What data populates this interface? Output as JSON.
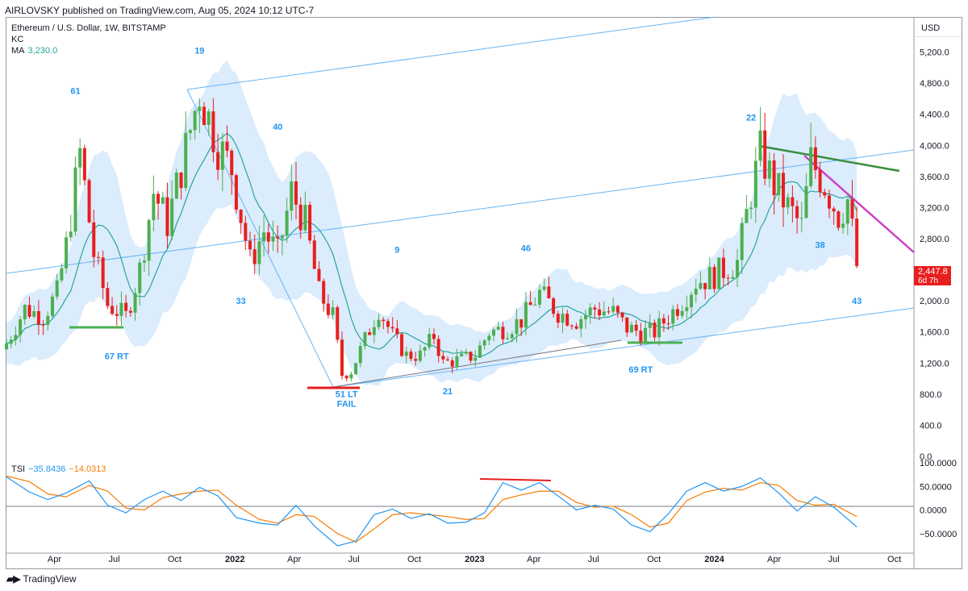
{
  "header": {
    "published": "AIRLOVSKY published on TradingView.com, Aug 05, 2024 10:12 UTC-7"
  },
  "legend": {
    "symbol": "Ethereum / U.S. Dollar, 1W, BITSTAMP",
    "kc": "KC",
    "ma_label": "MA",
    "ma_value": "3,230.0"
  },
  "price_axis": {
    "currency": "USD",
    "last_price": "2,447.8",
    "countdown": "6d 7h"
  },
  "tsi": {
    "label": "TSI",
    "value1": "−35.8436",
    "value2": "−14.0313"
  },
  "footer": {
    "brand": "TradingView",
    "logo": "tradingview-logo-icon"
  },
  "colors": {
    "up": "#4caf50",
    "down": "#e91e1e",
    "kc_fill": "#cfe6fb",
    "channel": "#64b5f6",
    "ma": "#26a69a",
    "tsi": "#2196f3",
    "tsi_signal": "#f57c00",
    "label_blue": "#2196f3"
  },
  "chart_data": {
    "type": "candlestick",
    "title": "Ethereum / U.S. Dollar, 1W, BITSTAMP",
    "y_range": [
      0,
      5600
    ],
    "y_ticks": [
      {
        "v": 0,
        "label": "0.0"
      },
      {
        "v": 400,
        "label": "400.0"
      },
      {
        "v": 800,
        "label": "800.0"
      },
      {
        "v": 1200,
        "label": "1,200.0"
      },
      {
        "v": 1600,
        "label": "1,600.0"
      },
      {
        "v": 2000,
        "label": "2,000.0"
      },
      {
        "v": 2400,
        "label": "2,400.0"
      },
      {
        "v": 2800,
        "label": "2,800.0"
      },
      {
        "v": 3200,
        "label": "3,200.0"
      },
      {
        "v": 3600,
        "label": "3,600.0"
      },
      {
        "v": 4000,
        "label": "4,000.0"
      },
      {
        "v": 4400,
        "label": "4,400.0"
      },
      {
        "v": 4800,
        "label": "4,800.0"
      },
      {
        "v": 5200,
        "label": "5,200.0"
      }
    ],
    "x_range": [
      "2021-01-18",
      "2024-10-31"
    ],
    "x_ticks": [
      {
        "d": "2021-04-01",
        "label": "Apr"
      },
      {
        "d": "2021-07-01",
        "label": "Jul"
      },
      {
        "d": "2021-10-01",
        "label": "Oct"
      },
      {
        "d": "2022-01-01",
        "label": "2022",
        "bold": true
      },
      {
        "d": "2022-04-01",
        "label": "Apr"
      },
      {
        "d": "2022-07-01",
        "label": "Jul"
      },
      {
        "d": "2022-10-01",
        "label": "Oct"
      },
      {
        "d": "2023-01-01",
        "label": "2023",
        "bold": true
      },
      {
        "d": "2023-04-01",
        "label": "Apr"
      },
      {
        "d": "2023-07-01",
        "label": "Jul"
      },
      {
        "d": "2023-10-01",
        "label": "Oct"
      },
      {
        "d": "2024-01-01",
        "label": "2024",
        "bold": true
      },
      {
        "d": "2024-04-01",
        "label": "Apr"
      },
      {
        "d": "2024-07-01",
        "label": "Jul"
      },
      {
        "d": "2024-10-01",
        "label": "Oct"
      }
    ],
    "closes": [
      {
        "d": "2021-01-18",
        "c": 1450
      },
      {
        "d": "2021-02-15",
        "c": 1900
      },
      {
        "d": "2021-03-15",
        "c": 1800
      },
      {
        "d": "2021-04-05",
        "c": 2100
      },
      {
        "d": "2021-04-19",
        "c": 2700
      },
      {
        "d": "2021-05-10",
        "c": 3900
      },
      {
        "d": "2021-05-31",
        "c": 2600
      },
      {
        "d": "2021-06-21",
        "c": 1950
      },
      {
        "d": "2021-07-19",
        "c": 1800
      },
      {
        "d": "2021-08-09",
        "c": 2400
      },
      {
        "d": "2021-08-30",
        "c": 3400
      },
      {
        "d": "2021-09-20",
        "c": 3000
      },
      {
        "d": "2021-10-11",
        "c": 3700
      },
      {
        "d": "2021-11-08",
        "c": 4700
      },
      {
        "d": "2021-12-06",
        "c": 4000
      },
      {
        "d": "2021-12-27",
        "c": 3700
      },
      {
        "d": "2022-01-24",
        "c": 2500
      },
      {
        "d": "2022-02-14",
        "c": 2900
      },
      {
        "d": "2022-03-07",
        "c": 2600
      },
      {
        "d": "2022-03-28",
        "c": 3400
      },
      {
        "d": "2022-04-18",
        "c": 3000
      },
      {
        "d": "2022-05-09",
        "c": 2100
      },
      {
        "d": "2022-05-30",
        "c": 1800
      },
      {
        "d": "2022-06-13",
        "c": 1050
      },
      {
        "d": "2022-06-27",
        "c": 1100
      },
      {
        "d": "2022-07-18",
        "c": 1500
      },
      {
        "d": "2022-08-08",
        "c": 1900
      },
      {
        "d": "2022-08-29",
        "c": 1550
      },
      {
        "d": "2022-09-19",
        "c": 1300
      },
      {
        "d": "2022-10-10",
        "c": 1300
      },
      {
        "d": "2022-10-31",
        "c": 1550
      },
      {
        "d": "2022-11-14",
        "c": 1200
      },
      {
        "d": "2022-12-12",
        "c": 1250
      },
      {
        "d": "2023-01-02",
        "c": 1300
      },
      {
        "d": "2023-01-23",
        "c": 1600
      },
      {
        "d": "2023-02-20",
        "c": 1650
      },
      {
        "d": "2023-03-13",
        "c": 1750
      },
      {
        "d": "2023-04-10",
        "c": 2100
      },
      {
        "d": "2023-05-08",
        "c": 1850
      },
      {
        "d": "2023-06-05",
        "c": 1750
      },
      {
        "d": "2023-07-03",
        "c": 1900
      },
      {
        "d": "2023-07-31",
        "c": 1850
      },
      {
        "d": "2023-08-21",
        "c": 1650
      },
      {
        "d": "2023-09-11",
        "c": 1600
      },
      {
        "d": "2023-10-02",
        "c": 1600
      },
      {
        "d": "2023-10-23",
        "c": 1800
      },
      {
        "d": "2023-11-13",
        "c": 2000
      },
      {
        "d": "2023-12-04",
        "c": 2250
      },
      {
        "d": "2023-12-25",
        "c": 2300
      },
      {
        "d": "2024-01-15",
        "c": 2400
      },
      {
        "d": "2024-02-05",
        "c": 2500
      },
      {
        "d": "2024-02-26",
        "c": 3400
      },
      {
        "d": "2024-03-11",
        "c": 3900
      },
      {
        "d": "2024-04-01",
        "c": 3500
      },
      {
        "d": "2024-04-22",
        "c": 3200
      },
      {
        "d": "2024-05-13",
        "c": 2950
      },
      {
        "d": "2024-05-27",
        "c": 3800
      },
      {
        "d": "2024-06-17",
        "c": 3500
      },
      {
        "d": "2024-07-08",
        "c": 3100
      },
      {
        "d": "2024-07-22",
        "c": 3300
      },
      {
        "d": "2024-07-29",
        "c": 2900
      },
      {
        "d": "2024-08-05",
        "c": 2447.8
      }
    ],
    "annotations": [
      {
        "text": "61",
        "d": "2021-05-03",
        "v": 4660
      },
      {
        "text": "19",
        "d": "2021-11-08",
        "v": 5180
      },
      {
        "text": "40",
        "d": "2022-03-07",
        "v": 4200
      },
      {
        "text": "33",
        "d": "2022-01-10",
        "v": 1960
      },
      {
        "text": "9",
        "d": "2022-09-05",
        "v": 2620
      },
      {
        "text": "46",
        "d": "2023-03-20",
        "v": 2640
      },
      {
        "text": "22",
        "d": "2024-02-26",
        "v": 4320
      },
      {
        "text": "38",
        "d": "2024-06-10",
        "v": 2680
      },
      {
        "text": "43",
        "d": "2024-08-05",
        "v": 1960
      },
      {
        "text": "21",
        "d": "2022-11-21",
        "v": 800
      },
      {
        "text": "67 RT",
        "d": "2021-07-05",
        "v": 1250
      },
      {
        "text": "51 LT",
        "d": "2022-06-20",
        "v": 760
      },
      {
        "text": "FAIL",
        "d": "2022-06-20",
        "v": 640
      },
      {
        "text": "69 RT",
        "d": "2023-09-11",
        "v": 1080
      }
    ],
    "tsi": {
      "y_ticks": [
        {
          "v": 100,
          "label": "100.0000"
        },
        {
          "v": 50,
          "label": "50.0000"
        },
        {
          "v": 0,
          "label": "0.0000"
        },
        {
          "v": -50,
          "label": "−50.0000"
        }
      ],
      "y_range": [
        -88,
        100
      ],
      "values": [
        {
          "d": "2021-01-18",
          "a": 70,
          "b": 72
        },
        {
          "d": "2021-02-22",
          "a": 38,
          "b": 60
        },
        {
          "d": "2021-03-22",
          "a": 22,
          "b": 34
        },
        {
          "d": "2021-04-19",
          "a": 36,
          "b": 28
        },
        {
          "d": "2021-05-24",
          "a": 62,
          "b": 52
        },
        {
          "d": "2021-06-21",
          "a": 10,
          "b": 40
        },
        {
          "d": "2021-07-19",
          "a": -6,
          "b": 4
        },
        {
          "d": "2021-08-16",
          "a": 22,
          "b": 0
        },
        {
          "d": "2021-09-13",
          "a": 40,
          "b": 26
        },
        {
          "d": "2021-10-11",
          "a": 20,
          "b": 34
        },
        {
          "d": "2021-11-08",
          "a": 48,
          "b": 40
        },
        {
          "d": "2021-12-06",
          "a": 30,
          "b": 42
        },
        {
          "d": "2022-01-03",
          "a": -16,
          "b": 10
        },
        {
          "d": "2022-02-07",
          "a": -28,
          "b": -20
        },
        {
          "d": "2022-03-07",
          "a": -32,
          "b": -28
        },
        {
          "d": "2022-04-04",
          "a": 10,
          "b": -10
        },
        {
          "d": "2022-05-02",
          "a": -34,
          "b": -14
        },
        {
          "d": "2022-06-06",
          "a": -76,
          "b": -50
        },
        {
          "d": "2022-07-04",
          "a": -66,
          "b": -68
        },
        {
          "d": "2022-08-01",
          "a": -10,
          "b": -40
        },
        {
          "d": "2022-08-29",
          "a": 2,
          "b": -10
        },
        {
          "d": "2022-09-26",
          "a": -18,
          "b": -6
        },
        {
          "d": "2022-10-24",
          "a": -8,
          "b": -10
        },
        {
          "d": "2022-11-21",
          "a": -28,
          "b": -14
        },
        {
          "d": "2022-12-19",
          "a": -26,
          "b": -20
        },
        {
          "d": "2023-01-16",
          "a": -6,
          "b": -18
        },
        {
          "d": "2023-02-13",
          "a": 58,
          "b": 22
        },
        {
          "d": "2023-03-13",
          "a": 42,
          "b": 32
        },
        {
          "d": "2023-04-10",
          "a": 58,
          "b": 40
        },
        {
          "d": "2023-05-08",
          "a": 30,
          "b": 40
        },
        {
          "d": "2023-06-05",
          "a": 0,
          "b": 16
        },
        {
          "d": "2023-07-03",
          "a": 10,
          "b": 6
        },
        {
          "d": "2023-07-31",
          "a": 2,
          "b": 8
        },
        {
          "d": "2023-08-28",
          "a": -32,
          "b": -10
        },
        {
          "d": "2023-09-25",
          "a": -46,
          "b": -36
        },
        {
          "d": "2023-10-23",
          "a": -8,
          "b": -28
        },
        {
          "d": "2023-11-20",
          "a": 40,
          "b": 20
        },
        {
          "d": "2023-12-18",
          "a": 58,
          "b": 38
        },
        {
          "d": "2024-01-15",
          "a": 40,
          "b": 46
        },
        {
          "d": "2024-02-12",
          "a": 50,
          "b": 42
        },
        {
          "d": "2024-03-11",
          "a": 68,
          "b": 58
        },
        {
          "d": "2024-04-08",
          "a": 36,
          "b": 52
        },
        {
          "d": "2024-05-06",
          "a": -2,
          "b": 20
        },
        {
          "d": "2024-06-03",
          "a": 28,
          "b": 10
        },
        {
          "d": "2024-07-01",
          "a": 6,
          "b": 12
        },
        {
          "d": "2024-08-05",
          "a": -35.8436,
          "b": -14.0313
        }
      ]
    }
  }
}
